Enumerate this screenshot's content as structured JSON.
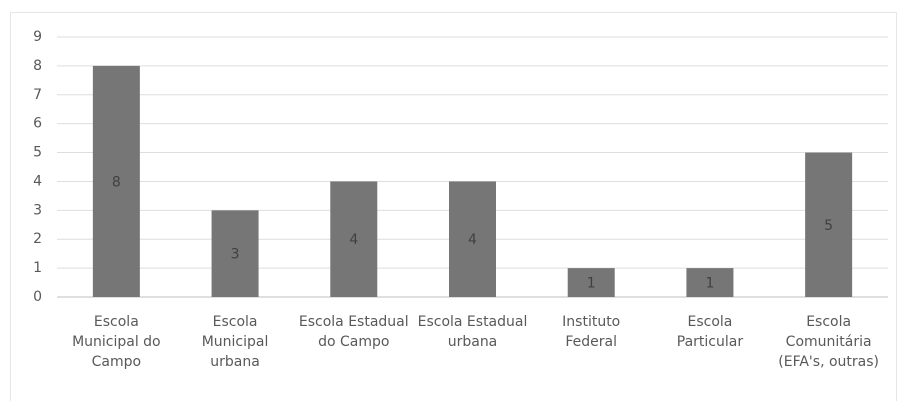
{
  "chart_data": {
    "type": "bar",
    "categories": [
      "Escola Municipal do Campo",
      "Escola Municipal urbana",
      "Escola Estadual do Campo",
      "Escola Estadual urbana",
      "Instituto Federal",
      "Escola Particular",
      "Escola Comunitária (EFA's, outras)"
    ],
    "values": [
      8,
      3,
      4,
      4,
      1,
      1,
      5
    ],
    "color": "#767676",
    "ylim": [
      0,
      9
    ],
    "yticks": [
      0,
      1,
      2,
      3,
      4,
      5,
      6,
      7,
      8,
      9
    ],
    "grid": true
  }
}
